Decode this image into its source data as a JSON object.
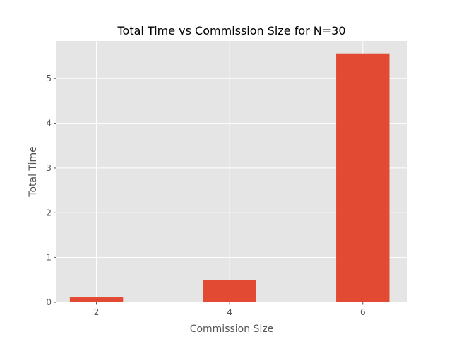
{
  "chart_data": {
    "type": "bar",
    "title": "Total Time vs Commission Size for N=30",
    "xlabel": "Commission Size",
    "ylabel": "Total Time",
    "x": [
      2,
      4,
      6
    ],
    "values": [
      0.11,
      0.5,
      5.56
    ],
    "xlim": [
      1.4,
      6.66
    ],
    "ylim": [
      0,
      5.84
    ],
    "xticks": [
      "2",
      "4",
      "6"
    ],
    "yticks": [
      "0",
      "1",
      "2",
      "3",
      "4",
      "5"
    ],
    "bar_width": 0.8,
    "grid": true,
    "colors": {
      "bar": "#e24a33",
      "plot_background": "#e5e5e5",
      "grid": "#ffffff",
      "text": "#555555"
    }
  }
}
